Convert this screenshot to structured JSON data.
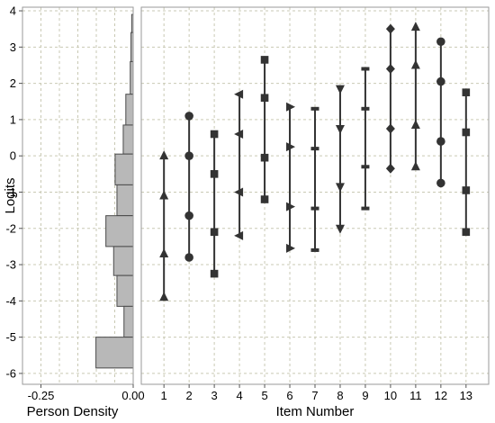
{
  "chart_data": [
    {
      "type": "histogram",
      "orientation": "horizontal",
      "xlabel": "Person Density",
      "ylabel": "Logits",
      "xlim": [
        -0.3,
        0.0
      ],
      "ylim": [
        -6.3,
        4.1
      ],
      "x_ticks": [
        "-0.25",
        "0.00"
      ],
      "y_ticks": [
        "4",
        "3",
        "2",
        "1",
        "0",
        "-1",
        "-2",
        "-3",
        "-4",
        "-5",
        "-6"
      ],
      "grid": true,
      "bar_color": "#b8b8b8",
      "bins": [
        {
          "y0": 3.4,
          "y1": 3.9,
          "density": 0.004
        },
        {
          "y0": 2.6,
          "y1": 3.4,
          "density": 0.006
        },
        {
          "y0": 1.7,
          "y1": 2.6,
          "density": 0.008
        },
        {
          "y0": 0.85,
          "y1": 1.7,
          "density": 0.02
        },
        {
          "y0": 0.05,
          "y1": 0.85,
          "density": 0.027
        },
        {
          "y0": -0.8,
          "y1": 0.05,
          "density": 0.049
        },
        {
          "y0": -1.65,
          "y1": -0.8,
          "density": 0.044
        },
        {
          "y0": -2.5,
          "y1": -1.65,
          "density": 0.074
        },
        {
          "y0": -3.3,
          "y1": -2.5,
          "density": 0.053
        },
        {
          "y0": -4.15,
          "y1": -3.3,
          "density": 0.044
        },
        {
          "y0": -5.0,
          "y1": -4.15,
          "density": 0.025
        },
        {
          "y0": -5.85,
          "y1": -5.0,
          "density": 0.101
        }
      ]
    },
    {
      "type": "scatter",
      "xlabel": "Item Number",
      "ylabel": "Logits",
      "xlim": [
        0.1,
        13.9
      ],
      "ylim": [
        -6.3,
        4.1
      ],
      "x_ticks": [
        "1",
        "2",
        "3",
        "4",
        "5",
        "6",
        "7",
        "8",
        "9",
        "10",
        "11",
        "12",
        "13"
      ],
      "grid": true,
      "color": "#333333",
      "items": [
        {
          "item": 1,
          "marker": "triangle-up",
          "values": [
            -3.9,
            -2.7,
            -1.1,
            0.0
          ]
        },
        {
          "item": 2,
          "marker": "circle",
          "values": [
            -2.8,
            -1.65,
            0.0,
            1.1
          ]
        },
        {
          "item": 3,
          "marker": "square",
          "values": [
            -3.25,
            -2.1,
            -0.5,
            0.6
          ]
        },
        {
          "item": 4,
          "marker": "triangle-left",
          "values": [
            -2.2,
            -1.0,
            0.6,
            1.7
          ]
        },
        {
          "item": 5,
          "marker": "square",
          "values": [
            -1.2,
            -0.05,
            1.6,
            2.65
          ]
        },
        {
          "item": 6,
          "marker": "triangle-right",
          "values": [
            -2.55,
            -1.4,
            0.25,
            1.35
          ]
        },
        {
          "item": 7,
          "marker": "dash",
          "values": [
            -2.6,
            -1.45,
            0.2,
            1.3
          ]
        },
        {
          "item": 8,
          "marker": "triangle-down",
          "values": [
            -2.0,
            -0.85,
            0.75,
            1.85
          ]
        },
        {
          "item": 9,
          "marker": "dash",
          "values": [
            -1.45,
            -0.3,
            1.3,
            2.4
          ]
        },
        {
          "item": 10,
          "marker": "diamond",
          "values": [
            -0.35,
            0.75,
            2.4,
            3.5
          ]
        },
        {
          "item": 11,
          "marker": "triangle-up",
          "values": [
            -0.3,
            0.85,
            2.5,
            3.55
          ]
        },
        {
          "item": 12,
          "marker": "circle",
          "values": [
            -0.75,
            0.4,
            2.05,
            3.15
          ]
        },
        {
          "item": 13,
          "marker": "square",
          "values": [
            -2.1,
            -0.95,
            0.65,
            1.75
          ]
        }
      ]
    }
  ]
}
